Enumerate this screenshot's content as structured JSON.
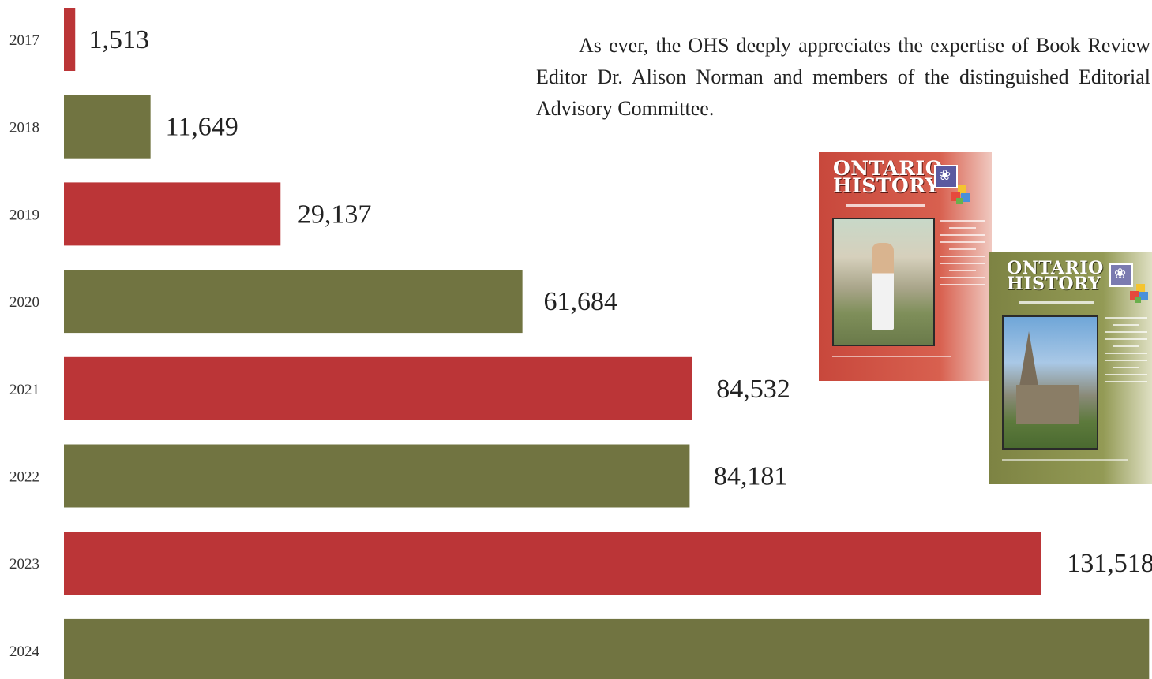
{
  "chart_data": {
    "type": "bar",
    "orientation": "horizontal",
    "categories": [
      "2017",
      "2018",
      "2019",
      "2020",
      "2021",
      "2022",
      "2023",
      "2024"
    ],
    "values": [
      1513,
      11649,
      29137,
      61684,
      84532,
      84181,
      131518,
      146000
    ],
    "value_labels": [
      "1,513",
      "11,649",
      "29,137",
      "61,684",
      "84,532",
      "84,181",
      "131,518",
      ""
    ],
    "colors": [
      "#bb3537",
      "#717441"
    ],
    "title": "",
    "xlabel": "",
    "ylabel": "",
    "grid": false,
    "legend": "none"
  },
  "text": {
    "paragraph": "As ever, the OHS deeply appreciates the expertise of Book Review Editor Dr. Alison Norman and members of the distinguished Editorial Advisory Committee."
  },
  "covers": [
    {
      "title_line1": "ONTARIO",
      "title_line2": "HISTORY",
      "color": "#c8483c"
    },
    {
      "title_line1": "ONTARIO",
      "title_line2": "HISTORY",
      "color": "#7d8343"
    }
  ]
}
